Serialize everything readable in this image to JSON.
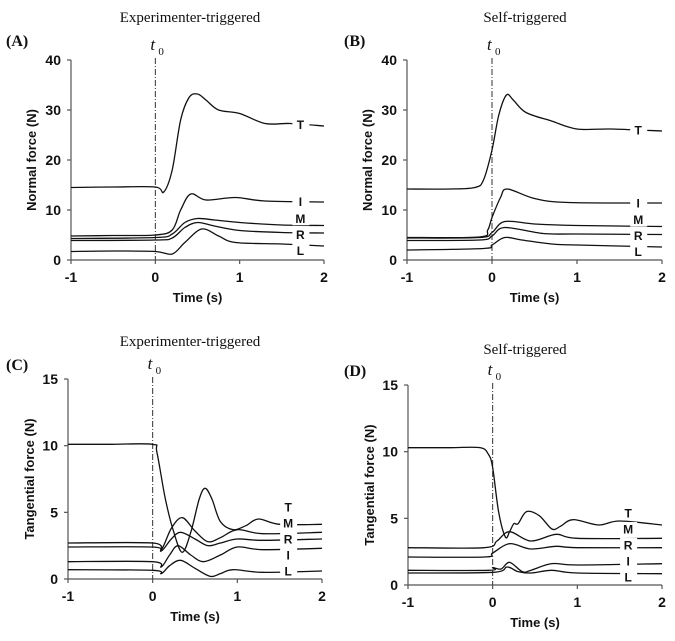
{
  "chart_data": [
    {
      "type": "line",
      "panel_label": "(A)",
      "title": "Experimenter-triggered",
      "marker_label": "t",
      "marker_sub": "0",
      "marker_x": 0,
      "xlabel": "Time (s)",
      "ylabel": "Normal force (N)",
      "xlim": [
        -1,
        2
      ],
      "ylim": [
        0,
        40
      ],
      "xticks": [
        -1,
        0,
        1,
        2
      ],
      "yticks": [
        0,
        10,
        20,
        30,
        40
      ],
      "series": [
        {
          "name": "T",
          "x": [
            -1,
            -0.5,
            0,
            0.1,
            0.2,
            0.3,
            0.4,
            0.5,
            0.6,
            0.75,
            1.0,
            1.3,
            1.6,
            2.0
          ],
          "y": [
            14.5,
            14.6,
            14.6,
            13.6,
            18,
            28,
            32.5,
            33.2,
            32,
            30,
            29.3,
            27.3,
            27.3,
            26.8
          ]
        },
        {
          "name": "I",
          "x": [
            -1,
            -0.5,
            0,
            0.2,
            0.3,
            0.42,
            0.6,
            0.95,
            1.3,
            2.0
          ],
          "y": [
            4.8,
            4.9,
            5.0,
            6.0,
            10,
            13.2,
            12.0,
            12.5,
            11.8,
            11.6
          ]
        },
        {
          "name": "M",
          "x": [
            -1,
            0,
            0.2,
            0.35,
            0.5,
            0.7,
            1.0,
            1.5,
            2.0
          ],
          "y": [
            4.3,
            4.5,
            5.2,
            7.5,
            8.3,
            8.0,
            7.5,
            7.0,
            6.9
          ]
        },
        {
          "name": "R",
          "x": [
            -1,
            0,
            0.2,
            0.35,
            0.5,
            0.7,
            1.0,
            1.5,
            2.0
          ],
          "y": [
            3.9,
            4.0,
            4.4,
            6.5,
            7.5,
            6.8,
            5.9,
            5.5,
            5.4
          ]
        },
        {
          "name": "L",
          "x": [
            -1,
            -0.5,
            0,
            0.2,
            0.35,
            0.55,
            0.75,
            0.95,
            1.5,
            2.0
          ],
          "y": [
            1.7,
            1.8,
            1.7,
            1.2,
            3.5,
            6.2,
            4.8,
            3.5,
            3.2,
            2.8
          ]
        }
      ]
    },
    {
      "type": "line",
      "panel_label": "(B)",
      "title": "Self-triggered",
      "marker_label": "t",
      "marker_sub": "0",
      "marker_x": 0,
      "xlabel": "Time (s)",
      "ylabel": "Normal force (N)",
      "xlim": [
        -1,
        2
      ],
      "ylim": [
        0,
        40
      ],
      "xticks": [
        -1,
        0,
        1,
        2
      ],
      "yticks": [
        0,
        10,
        20,
        30,
        40
      ],
      "series": [
        {
          "name": "T",
          "x": [
            -1,
            -0.5,
            -0.2,
            -0.1,
            0,
            0.08,
            0.17,
            0.25,
            0.4,
            0.7,
            1.0,
            1.4,
            2.0
          ],
          "y": [
            14.2,
            14.2,
            14.5,
            16,
            22,
            29,
            33,
            32,
            29.5,
            27.8,
            26.2,
            26.2,
            25.8
          ]
        },
        {
          "name": "I",
          "x": [
            -1,
            -0.15,
            -0.05,
            0,
            0.1,
            0.18,
            0.5,
            0.9,
            2.0
          ],
          "y": [
            4.5,
            4.6,
            6,
            8.5,
            12.5,
            14.2,
            12.3,
            11.5,
            11.4
          ]
        },
        {
          "name": "M",
          "x": [
            -1,
            -0.15,
            0,
            0.15,
            0.5,
            1.0,
            2.0
          ],
          "y": [
            4.4,
            4.5,
            5.5,
            7.7,
            7.2,
            6.9,
            6.7
          ]
        },
        {
          "name": "R",
          "x": [
            -1,
            -0.15,
            0,
            0.15,
            0.6,
            1.0,
            2.0
          ],
          "y": [
            3.9,
            4.0,
            4.8,
            6.5,
            5.3,
            5.2,
            5.1
          ]
        },
        {
          "name": "L",
          "x": [
            -1,
            -0.1,
            0,
            0.15,
            0.35,
            0.7,
            1.0,
            2.0
          ],
          "y": [
            2.0,
            2.3,
            3.0,
            4.5,
            4.0,
            3.2,
            3.0,
            2.6
          ]
        }
      ]
    },
    {
      "type": "line",
      "panel_label": "(C)",
      "title": "Experimenter-triggered",
      "marker_label": "t",
      "marker_sub": "0",
      "marker_x": 0,
      "xlabel": "Time (s)",
      "ylabel": "Tangential force (N)",
      "xlim": [
        -1,
        2
      ],
      "ylim": [
        0,
        15
      ],
      "xticks": [
        -1,
        0,
        1,
        2
      ],
      "yticks": [
        0,
        5,
        10,
        15
      ],
      "series": [
        {
          "name": "T",
          "x": [
            -1,
            -0.5,
            0,
            0.05,
            0.15,
            0.25,
            0.35,
            0.45,
            0.55,
            0.62,
            0.7,
            0.8,
            0.95,
            1.1,
            1.25,
            1.5,
            2.0
          ],
          "y": [
            10.1,
            10.1,
            10.1,
            9.5,
            6.0,
            3.5,
            2.0,
            3.5,
            6.0,
            6.8,
            6.0,
            4.3,
            3.7,
            4.0,
            4.5,
            4.1,
            4.1
          ]
        },
        {
          "name": "M",
          "x": [
            -1,
            0,
            0.1,
            0.22,
            0.35,
            0.5,
            0.65,
            0.8,
            1.0,
            1.3,
            2.0
          ],
          "y": [
            2.7,
            2.7,
            2.2,
            3.8,
            4.6,
            3.6,
            2.8,
            3.1,
            3.7,
            3.4,
            3.5
          ]
        },
        {
          "name": "R",
          "x": [
            -1,
            0,
            0.1,
            0.22,
            0.33,
            0.5,
            0.65,
            0.8,
            1.0,
            1.3,
            2.0
          ],
          "y": [
            2.4,
            2.4,
            2.1,
            3.0,
            3.5,
            3.0,
            2.5,
            2.7,
            3.0,
            2.9,
            3.0
          ]
        },
        {
          "name": "I",
          "x": [
            -1,
            0,
            0.1,
            0.2,
            0.3,
            0.45,
            0.6,
            0.8,
            1.0,
            1.3,
            2.0
          ],
          "y": [
            1.3,
            1.3,
            0.9,
            1.8,
            2.5,
            1.8,
            1.3,
            1.8,
            2.4,
            2.2,
            2.3
          ]
        },
        {
          "name": "L",
          "x": [
            -1,
            0,
            0.1,
            0.2,
            0.33,
            0.5,
            0.68,
            0.8,
            0.95,
            1.3,
            2.0
          ],
          "y": [
            0.7,
            0.65,
            0.4,
            1.0,
            1.4,
            0.8,
            0.2,
            0.4,
            0.7,
            0.5,
            0.6
          ]
        }
      ]
    },
    {
      "type": "line",
      "panel_label": "(D)",
      "title": "Self-triggered",
      "marker_label": "t",
      "marker_sub": "0",
      "marker_x": 0,
      "xlabel": "Time (s)",
      "ylabel": "Tangential force (N)",
      "xlim": [
        -1,
        2
      ],
      "ylim": [
        0,
        15
      ],
      "xticks": [
        -1,
        0,
        1,
        2
      ],
      "yticks": [
        0,
        5,
        10,
        15
      ],
      "series": [
        {
          "name": "T",
          "x": [
            -1,
            -0.5,
            -0.15,
            -0.05,
            0,
            0.07,
            0.15,
            0.2,
            0.25,
            0.3,
            0.4,
            0.55,
            0.7,
            0.8,
            0.95,
            1.25,
            1.5,
            2.0
          ],
          "y": [
            10.3,
            10.3,
            10.3,
            9.8,
            8.8,
            5.5,
            3.6,
            4.0,
            4.6,
            4.6,
            5.5,
            5.2,
            4.2,
            4.4,
            4.9,
            4.5,
            4.8,
            4.5
          ]
        },
        {
          "name": "M",
          "x": [
            -1,
            -0.1,
            0.05,
            0.2,
            0.45,
            0.75,
            1.0,
            2.0
          ],
          "y": [
            2.8,
            2.8,
            3.3,
            4.0,
            3.3,
            3.8,
            3.5,
            3.5
          ]
        },
        {
          "name": "R",
          "x": [
            -1,
            -0.1,
            0,
            0.2,
            0.45,
            0.75,
            1.0,
            2.0
          ],
          "y": [
            2.1,
            2.1,
            2.4,
            3.1,
            2.7,
            2.9,
            2.8,
            2.8
          ]
        },
        {
          "name": "I",
          "x": [
            -1,
            -0.05,
            0,
            0.1,
            0.2,
            0.35,
            0.45,
            0.7,
            1.0,
            2.0
          ],
          "y": [
            1.1,
            1.1,
            1.3,
            1.2,
            1.7,
            1.0,
            1.1,
            1.6,
            1.5,
            1.6
          ]
        },
        {
          "name": "L",
          "x": [
            -1,
            0,
            0.17,
            0.3,
            0.45,
            0.7,
            1.0,
            2.0
          ],
          "y": [
            0.9,
            0.95,
            1.35,
            1.0,
            0.9,
            1.1,
            0.9,
            0.85
          ]
        }
      ]
    }
  ]
}
